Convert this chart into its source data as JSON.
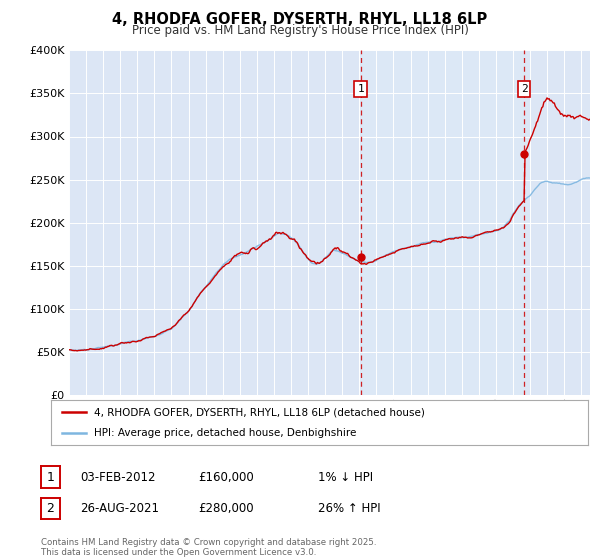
{
  "title": "4, RHODFA GOFER, DYSERTH, RHYL, LL18 6LP",
  "subtitle": "Price paid vs. HM Land Registry's House Price Index (HPI)",
  "legend_line1": "4, RHODFA GOFER, DYSERTH, RHYL, LL18 6LP (detached house)",
  "legend_line2": "HPI: Average price, detached house, Denbighshire",
  "sale1_date": "03-FEB-2012",
  "sale1_price": 160000,
  "sale1_pct": "1% ↓ HPI",
  "sale2_date": "26-AUG-2021",
  "sale2_price": 280000,
  "sale2_pct": "26% ↑ HPI",
  "copyright": "Contains HM Land Registry data © Crown copyright and database right 2025.\nThis data is licensed under the Open Government Licence v3.0.",
  "hpi_color": "#7eb6e0",
  "price_color": "#cc0000",
  "vline_color": "#cc0000",
  "chart_bg": "#dce6f5",
  "shade_bg": "#dce8f8",
  "ylim": [
    0,
    400000
  ],
  "yticks": [
    0,
    50000,
    100000,
    150000,
    200000,
    250000,
    300000,
    350000,
    400000
  ],
  "sale1_x": 2012.08,
  "sale2_x": 2021.65,
  "xlim_start": 1995.0,
  "xlim_end": 2025.5
}
